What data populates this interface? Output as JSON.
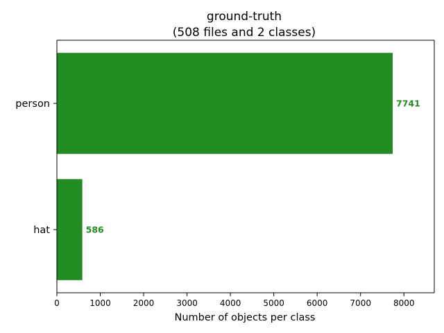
{
  "chart_data": {
    "type": "bar",
    "orientation": "horizontal",
    "title": "ground-truth",
    "subtitle": "(508 files and 2 classes)",
    "xlabel": "Number of objects per class",
    "ylabel": "",
    "categories": [
      "person",
      "hat"
    ],
    "values": [
      7741,
      586
    ],
    "data_labels": [
      "7741",
      "586"
    ],
    "xlim": [
      0,
      8700
    ],
    "xticks": [
      0,
      1000,
      2000,
      3000,
      4000,
      5000,
      6000,
      7000,
      8000
    ],
    "xtick_labels": [
      "0",
      "1000",
      "2000",
      "3000",
      "4000",
      "5000",
      "6000",
      "7000",
      "8000"
    ],
    "grid": false,
    "legend": "none",
    "bar_color": "#228b22",
    "label_color": "#228b22"
  }
}
